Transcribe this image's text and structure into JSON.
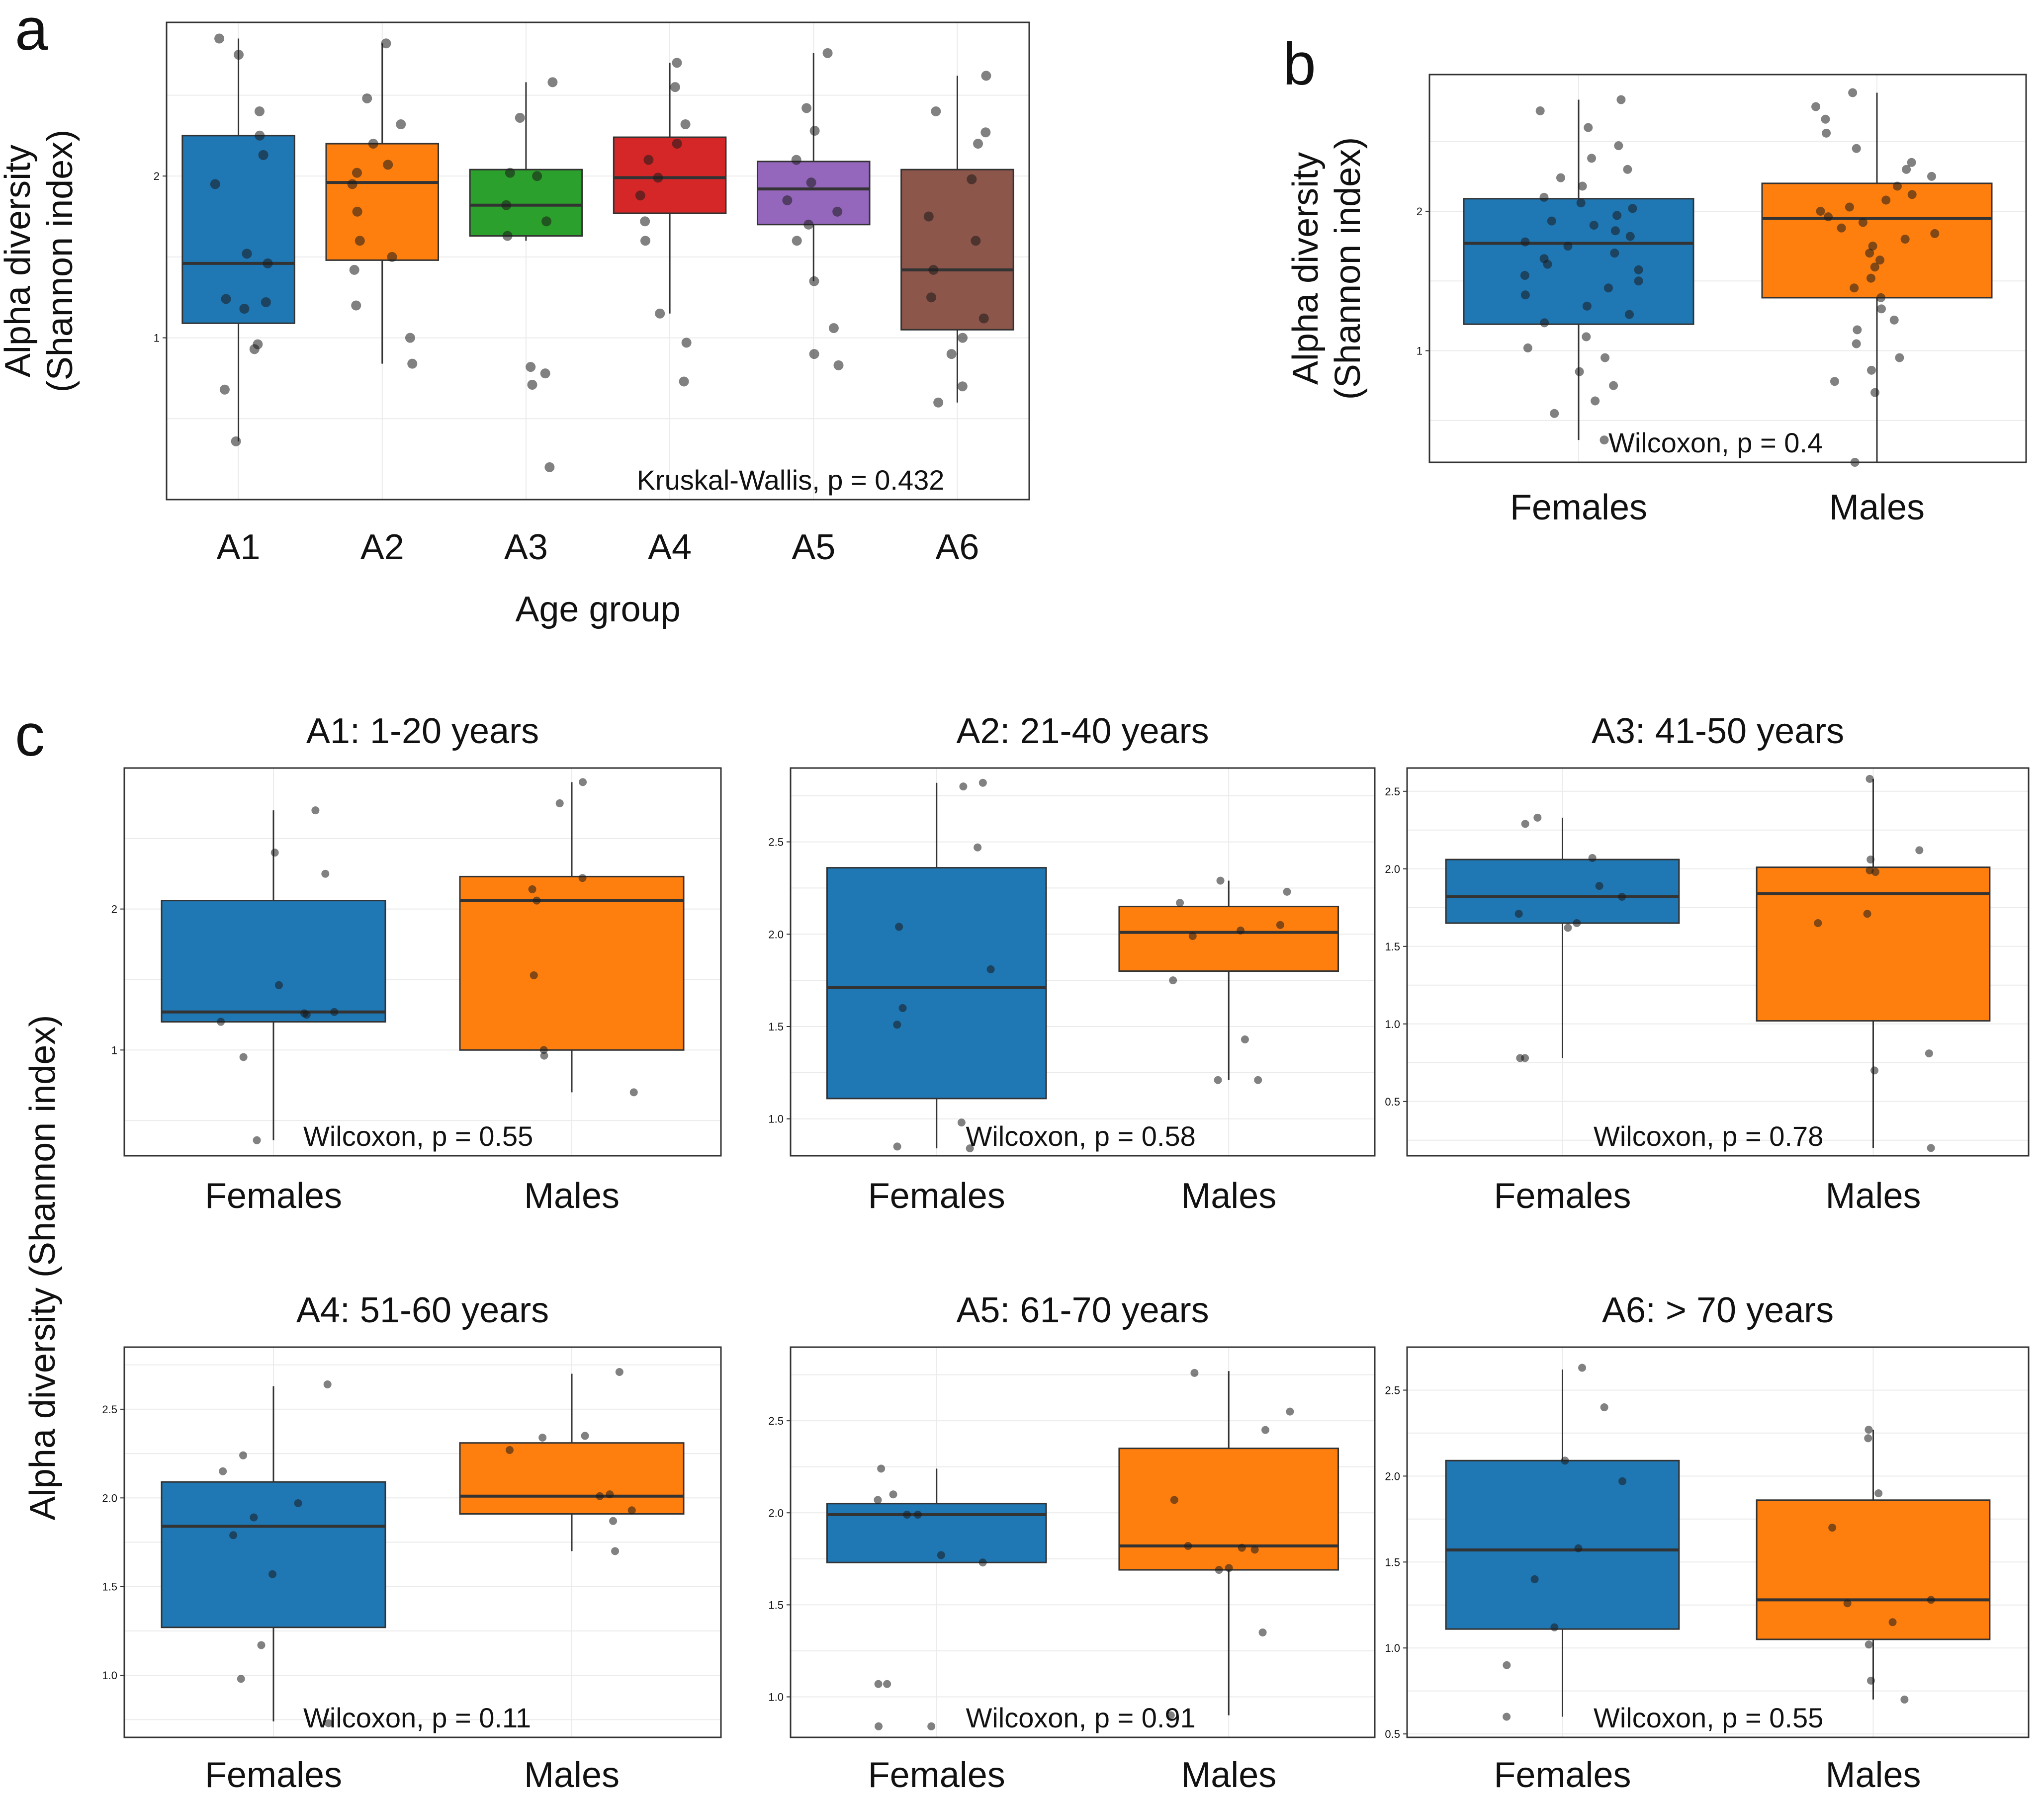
{
  "figure": {
    "panel_letters": [
      "a",
      "b",
      "c"
    ],
    "shared_ylabel_c": "Alpha diversity (Shannon index)"
  },
  "colors": {
    "blue": "#1f77b4",
    "orange": "#ff7f0e",
    "green": "#2ca02c",
    "red": "#d62728",
    "purple": "#9467bd",
    "brown": "#8c564b",
    "grid": "#ebebeb",
    "frame": "#333333",
    "point": "#1a1a1a"
  },
  "chart_data": [
    {
      "id": "a",
      "type": "box",
      "ylabel_lines": [
        "Alpha diversity",
        "(Shannon index)"
      ],
      "xlabel": "Age group",
      "ylim": [
        0.0,
        2.95
      ],
      "yticks": [
        {
          "value": 1,
          "label": "1"
        },
        {
          "value": 2,
          "label": "2"
        }
      ],
      "categories": [
        "A1",
        "A2",
        "A3",
        "A4",
        "A5",
        "A6"
      ],
      "fills": [
        "blue",
        "orange",
        "green",
        "red",
        "purple",
        "brown"
      ],
      "boxes": [
        {
          "q1": 1.09,
          "median": 1.46,
          "q3": 2.25,
          "whisker_low": 0.36,
          "whisker_high": 2.85
        },
        {
          "q1": 1.48,
          "median": 1.96,
          "q3": 2.2,
          "whisker_low": 0.84,
          "whisker_high": 2.82
        },
        {
          "q1": 1.63,
          "median": 1.82,
          "q3": 2.04,
          "whisker_low": 1.6,
          "whisker_high": 2.58
        },
        {
          "q1": 1.77,
          "median": 1.99,
          "q3": 2.24,
          "whisker_low": 1.15,
          "whisker_high": 2.7
        },
        {
          "q1": 1.7,
          "median": 1.92,
          "q3": 2.09,
          "whisker_low": 1.35,
          "whisker_high": 2.76
        },
        {
          "q1": 1.05,
          "median": 1.42,
          "q3": 2.04,
          "whisker_low": 0.6,
          "whisker_high": 2.62
        }
      ],
      "points": [
        [
          2.85,
          2.75,
          2.4,
          2.25,
          2.13,
          1.95,
          1.52,
          1.46,
          1.24,
          1.22,
          1.18,
          0.96,
          0.93,
          0.68,
          0.36
        ],
        [
          2.82,
          2.48,
          2.32,
          2.2,
          2.07,
          2.02,
          1.95,
          1.78,
          1.6,
          1.5,
          1.42,
          1.2,
          1.0,
          0.84
        ],
        [
          2.58,
          2.36,
          2.02,
          2.0,
          1.82,
          1.72,
          1.63,
          0.82,
          0.78,
          0.71,
          0.2
        ],
        [
          2.7,
          2.55,
          2.32,
          2.2,
          2.1,
          1.99,
          1.88,
          1.72,
          1.6,
          1.15,
          0.97,
          0.73
        ],
        [
          2.76,
          2.42,
          2.28,
          2.1,
          1.96,
          1.85,
          1.78,
          1.7,
          1.6,
          1.35,
          1.06,
          0.9,
          0.83
        ],
        [
          2.62,
          2.4,
          2.27,
          2.2,
          1.98,
          1.75,
          1.6,
          1.42,
          1.25,
          1.12,
          1.0,
          0.9,
          0.7,
          0.6
        ]
      ],
      "stat_label": "Kruskal-Wallis, p = 0.432"
    },
    {
      "id": "b",
      "type": "box",
      "ylabel_lines": [
        "Alpha diversity",
        "(Shannon index)"
      ],
      "ylim": [
        0.2,
        2.98
      ],
      "yticks": [
        {
          "value": 1,
          "label": "1"
        },
        {
          "value": 2,
          "label": "2"
        }
      ],
      "categories": [
        "Females",
        "Males"
      ],
      "fills": [
        "blue",
        "orange"
      ],
      "boxes": [
        {
          "q1": 1.19,
          "median": 1.77,
          "q3": 2.09,
          "whisker_low": 0.36,
          "whisker_high": 2.8
        },
        {
          "q1": 1.38,
          "median": 1.95,
          "q3": 2.2,
          "whisker_low": 0.2,
          "whisker_high": 2.85
        }
      ],
      "points": [
        [
          2.8,
          2.72,
          2.6,
          2.47,
          2.38,
          2.3,
          2.24,
          2.18,
          2.1,
          2.06,
          2.02,
          1.97,
          1.93,
          1.9,
          1.86,
          1.82,
          1.78,
          1.75,
          1.7,
          1.66,
          1.62,
          1.58,
          1.54,
          1.5,
          1.45,
          1.4,
          1.32,
          1.26,
          1.2,
          1.1,
          1.02,
          0.95,
          0.85,
          0.75,
          0.64,
          0.55,
          0.36
        ],
        [
          2.85,
          2.75,
          2.66,
          2.56,
          2.45,
          2.35,
          2.3,
          2.25,
          2.18,
          2.12,
          2.08,
          2.03,
          2.0,
          1.96,
          1.92,
          1.88,
          1.84,
          1.8,
          1.75,
          1.7,
          1.65,
          1.6,
          1.52,
          1.45,
          1.38,
          1.3,
          1.22,
          1.15,
          1.05,
          0.95,
          0.86,
          0.78,
          0.7,
          0.2
        ]
      ],
      "stat_label": "Wilcoxon, p = 0.4"
    },
    {
      "id": "c1",
      "type": "box",
      "title": "A1:  1-20 years",
      "ylim": [
        0.25,
        3.0
      ],
      "yticks": [
        {
          "value": 1,
          "label": "1"
        },
        {
          "value": 2,
          "label": "2"
        }
      ],
      "categories": [
        "Females",
        "Males"
      ],
      "fills": [
        "blue",
        "orange"
      ],
      "boxes": [
        {
          "q1": 1.2,
          "median": 1.27,
          "q3": 2.06,
          "whisker_low": 0.36,
          "whisker_high": 2.7
        },
        {
          "q1": 1.0,
          "median": 2.06,
          "q3": 2.23,
          "whisker_low": 0.7,
          "whisker_high": 2.9
        }
      ],
      "points": [
        [
          2.7,
          2.4,
          2.25,
          1.46,
          1.27,
          1.26,
          1.25,
          1.2,
          0.95,
          0.36
        ],
        [
          2.9,
          2.75,
          2.22,
          2.14,
          2.06,
          1.53,
          1.0,
          0.96,
          0.7
        ]
      ],
      "stat_label": "Wilcoxon, p = 0.55"
    },
    {
      "id": "c2",
      "type": "box",
      "title": "A2:  21-40 years",
      "ylim": [
        0.8,
        2.9
      ],
      "yticks": [
        {
          "value": 1.0,
          "label": "1.0"
        },
        {
          "value": 1.5,
          "label": "1.5"
        },
        {
          "value": 2.0,
          "label": "2.0"
        },
        {
          "value": 2.5,
          "label": "2.5"
        }
      ],
      "categories": [
        "Females",
        "Males"
      ],
      "fills": [
        "blue",
        "orange"
      ],
      "boxes": [
        {
          "q1": 1.11,
          "median": 1.71,
          "q3": 2.36,
          "whisker_low": 0.84,
          "whisker_high": 2.82
        },
        {
          "q1": 1.8,
          "median": 2.01,
          "q3": 2.15,
          "whisker_low": 1.21,
          "whisker_high": 2.29
        }
      ],
      "points": [
        [
          2.82,
          2.8,
          2.47,
          2.04,
          1.81,
          1.6,
          1.51,
          0.98,
          0.85,
          0.84
        ],
        [
          2.29,
          2.23,
          2.17,
          2.05,
          2.02,
          1.99,
          1.75,
          1.43,
          1.21,
          1.21
        ]
      ],
      "stat_label": "Wilcoxon, p = 0.58"
    },
    {
      "id": "c3",
      "type": "box",
      "title": "A3:  41-50 years",
      "ylim": [
        0.15,
        2.65
      ],
      "yticks": [
        {
          "value": 0.5,
          "label": "0.5"
        },
        {
          "value": 1.0,
          "label": "1.0"
        },
        {
          "value": 1.5,
          "label": "1.5"
        },
        {
          "value": 2.0,
          "label": "2.0"
        },
        {
          "value": 2.5,
          "label": "2.5"
        }
      ],
      "categories": [
        "Females",
        "Males"
      ],
      "fills": [
        "blue",
        "orange"
      ],
      "boxes": [
        {
          "q1": 1.65,
          "median": 1.82,
          "q3": 2.06,
          "whisker_low": 0.78,
          "whisker_high": 2.33
        },
        {
          "q1": 1.02,
          "median": 1.84,
          "q3": 2.01,
          "whisker_low": 0.2,
          "whisker_high": 2.58
        }
      ],
      "points": [
        [
          2.33,
          2.29,
          2.07,
          1.89,
          1.82,
          1.71,
          1.65,
          1.62,
          0.78,
          0.78
        ],
        [
          2.58,
          2.12,
          2.06,
          1.99,
          1.98,
          1.71,
          1.65,
          0.81,
          0.7,
          0.2
        ]
      ],
      "stat_label": "Wilcoxon, p = 0.78"
    },
    {
      "id": "c4",
      "type": "box",
      "title": "A4:  51-60 years",
      "ylim": [
        0.65,
        2.85
      ],
      "yticks": [
        {
          "value": 1.0,
          "label": "1.0"
        },
        {
          "value": 1.5,
          "label": "1.5"
        },
        {
          "value": 2.0,
          "label": "2.0"
        },
        {
          "value": 2.5,
          "label": "2.5"
        }
      ],
      "categories": [
        "Females",
        "Males"
      ],
      "fills": [
        "blue",
        "orange"
      ],
      "boxes": [
        {
          "q1": 1.27,
          "median": 1.84,
          "q3": 2.09,
          "whisker_low": 0.74,
          "whisker_high": 2.63
        },
        {
          "q1": 1.91,
          "median": 2.01,
          "q3": 2.31,
          "whisker_low": 1.7,
          "whisker_high": 2.7
        }
      ],
      "points": [
        [
          2.64,
          2.24,
          2.15,
          1.97,
          1.89,
          1.79,
          1.57,
          1.17,
          0.98,
          0.73
        ],
        [
          2.71,
          2.35,
          2.34,
          2.27,
          2.02,
          2.01,
          1.93,
          1.87,
          1.7
        ]
      ],
      "stat_label": "Wilcoxon, p = 0.11"
    },
    {
      "id": "c5",
      "type": "box",
      "title": "A5:  61-70 years",
      "ylim": [
        0.78,
        2.9
      ],
      "yticks": [
        {
          "value": 1.0,
          "label": "1.0"
        },
        {
          "value": 1.5,
          "label": "1.5"
        },
        {
          "value": 2.0,
          "label": "2.0"
        },
        {
          "value": 2.5,
          "label": "2.5"
        }
      ],
      "categories": [
        "Females",
        "Males"
      ],
      "fills": [
        "blue",
        "orange"
      ],
      "boxes": [
        {
          "q1": 1.73,
          "median": 1.99,
          "q3": 2.05,
          "whisker_low": 1.73,
          "whisker_high": 2.24
        },
        {
          "q1": 1.69,
          "median": 1.82,
          "q3": 2.35,
          "whisker_low": 0.9,
          "whisker_high": 2.77
        }
      ],
      "points": [
        [
          2.24,
          2.1,
          2.07,
          1.99,
          1.99,
          1.77,
          1.73,
          1.07,
          1.07,
          0.84,
          0.84
        ],
        [
          2.76,
          2.55,
          2.45,
          2.07,
          1.82,
          1.81,
          1.8,
          1.7,
          1.69,
          1.35,
          0.9
        ]
      ],
      "stat_label": "Wilcoxon, p = 0.91"
    },
    {
      "id": "c6",
      "type": "box",
      "title": "A6:  > 70 years",
      "ylim": [
        0.48,
        2.75
      ],
      "yticks": [
        {
          "value": 0.5,
          "label": "0.5"
        },
        {
          "value": 1.0,
          "label": "1.0"
        },
        {
          "value": 1.5,
          "label": "1.5"
        },
        {
          "value": 2.0,
          "label": "2.0"
        },
        {
          "value": 2.5,
          "label": "2.5"
        }
      ],
      "categories": [
        "Females",
        "Males"
      ],
      "fills": [
        "blue",
        "orange"
      ],
      "boxes": [
        {
          "q1": 1.11,
          "median": 1.57,
          "q3": 2.09,
          "whisker_low": 0.6,
          "whisker_high": 2.62
        },
        {
          "q1": 1.05,
          "median": 1.28,
          "q3": 1.86,
          "whisker_low": 0.7,
          "whisker_high": 2.27
        }
      ],
      "points": [
        [
          2.63,
          2.4,
          2.09,
          1.97,
          1.58,
          1.4,
          1.12,
          0.9,
          0.6
        ],
        [
          2.27,
          2.22,
          1.9,
          1.7,
          1.28,
          1.26,
          1.15,
          1.02,
          0.81,
          0.7
        ]
      ],
      "stat_label": "Wilcoxon, p = 0.55"
    }
  ]
}
